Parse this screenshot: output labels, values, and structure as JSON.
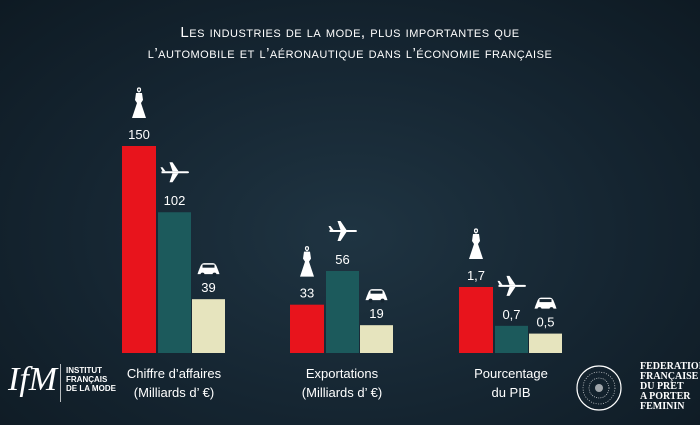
{
  "title_line1": "Les industries de la mode, plus importantes que",
  "title_line2": "l’automobile et l’aéronautique dans l’économie française",
  "colors": {
    "fashion": "#e8141c",
    "aero": "#1c5a5c",
    "auto": "#e6e4be",
    "background": "#152531"
  },
  "chart_data": {
    "type": "bar",
    "categories": [
      [
        "Chiffre d’affaires",
        "(Milliards d’ €)"
      ],
      [
        "Exportations",
        "(Milliards d’ €)"
      ],
      [
        "Pourcentage",
        "du PIB"
      ]
    ],
    "series": [
      {
        "icon": "dress-icon",
        "values": [
          150,
          33,
          1.7
        ],
        "labels": [
          "150",
          "33",
          "1,7"
        ]
      },
      {
        "icon": "airplane-icon",
        "values": [
          102,
          56,
          0.7
        ],
        "labels": [
          "102",
          "56",
          "0,7"
        ]
      },
      {
        "icon": "car-icon",
        "values": [
          39,
          19,
          0.5
        ],
        "labels": [
          "39",
          "19",
          "0,5"
        ]
      }
    ],
    "group_ymax": [
      150,
      56,
      1.7
    ],
    "note": ""
  },
  "logo_left": {
    "mark": "IfM",
    "lines": [
      "INSTITUT",
      "FRANÇAIS",
      "DE LA MODE"
    ]
  },
  "logo_right": {
    "lines": [
      "FEDERATION",
      "FRANÇAISE",
      "DU PRET",
      "A PORTER",
      "FEMININ"
    ]
  }
}
